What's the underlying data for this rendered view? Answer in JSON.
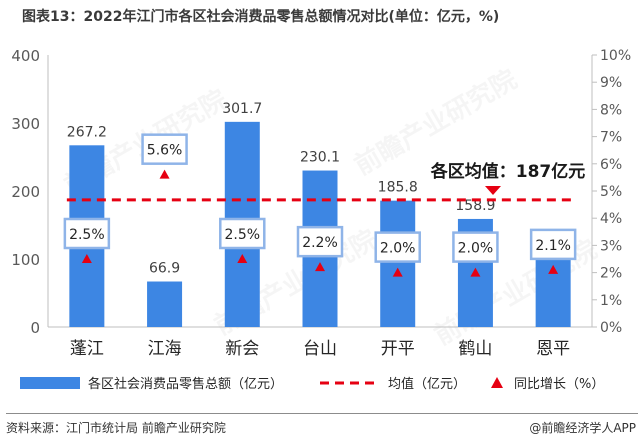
{
  "title": "图表13：2022年江门市各区社会消费品零售总额情况对比(单位：亿元，%)",
  "source": "资料来源：江门市统计局 前瞻产业研究院",
  "brand": "@前瞻经济学人APP",
  "watermark": "前瞻产业研究院",
  "colors": {
    "bar": "#3d86e3",
    "avg_line": "#e60012",
    "growth_marker": "#e60012",
    "callout_border": "#8fb4e8"
  },
  "chart_data": {
    "type": "bar",
    "categories": [
      "蓬江",
      "江海",
      "新会",
      "台山",
      "开平",
      "鹤山",
      "恩平"
    ],
    "series": [
      {
        "name": "各区社会消费品零售总额（亿元）",
        "type": "bar",
        "axis": "left",
        "values": [
          267.2,
          66.9,
          301.7,
          230.1,
          185.8,
          158.9,
          98.5
        ],
        "labels": [
          "267.2",
          "66.9",
          "301.7",
          "230.1",
          "185.8",
          "158.9",
          "98.5"
        ]
      },
      {
        "name": "均值（亿元）",
        "type": "line",
        "axis": "left",
        "value": 187
      },
      {
        "name": "同比增长（%）",
        "type": "scatter",
        "axis": "right",
        "values": [
          2.5,
          5.6,
          2.5,
          2.2,
          2.0,
          2.0,
          2.1
        ],
        "labels": [
          "2.5%",
          "5.6%",
          "2.5%",
          "2.2%",
          "2.0%",
          "2.0%",
          "2.1%"
        ]
      }
    ],
    "y_left": {
      "ylim": [
        0,
        400
      ],
      "ticks": [
        "0",
        "100",
        "200",
        "300",
        "400"
      ]
    },
    "y_right": {
      "ylim": [
        0,
        10
      ],
      "ticks": [
        "0%",
        "1%",
        "2%",
        "3%",
        "4%",
        "5%",
        "6%",
        "7%",
        "8%",
        "9%",
        "10%"
      ]
    },
    "annotation": "各区均值：187亿元",
    "legend_position": "bottom"
  }
}
